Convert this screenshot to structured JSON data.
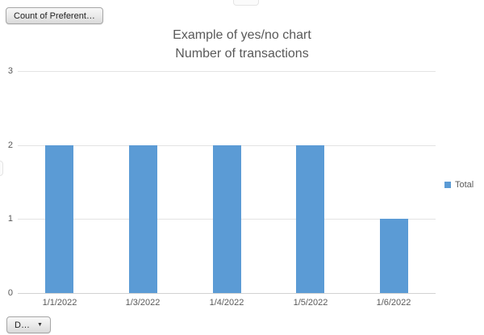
{
  "pivot_buttons": {
    "value_field_label": "Count of Preferent…",
    "axis_field_label": "D…",
    "dropdown_arrow": "▼"
  },
  "chart_data": {
    "type": "bar",
    "title": "Example of yes/no chart",
    "subtitle": "Number of transactions",
    "categories": [
      "1/1/2022",
      "1/3/2022",
      "1/4/2022",
      "1/5/2022",
      "1/6/2022"
    ],
    "series": [
      {
        "name": "Total",
        "values": [
          2,
          2,
          2,
          2,
          1
        ]
      }
    ],
    "ylim": [
      0,
      3
    ],
    "yticks": [
      0,
      1,
      2,
      3
    ],
    "grid": true,
    "legend_position": "right"
  },
  "colors": {
    "bar": "#5b9bd5",
    "title_text": "#595959",
    "axis_text": "#595959",
    "gridline": "#e3e3e3",
    "axis_line": "#d2d2d2",
    "button_border": "#a6a6a6"
  }
}
